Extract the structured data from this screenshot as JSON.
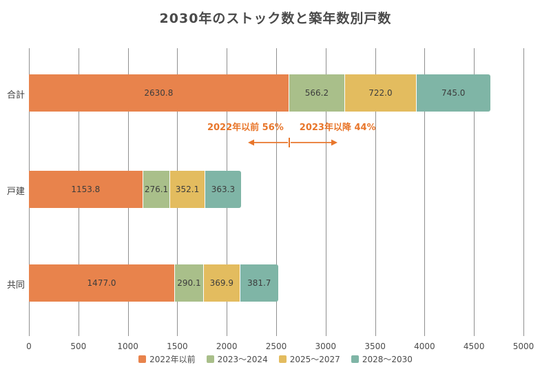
{
  "title": "2030年のストック数と築年数別戸数",
  "chart_data": {
    "type": "bar",
    "orientation": "horizontal",
    "stacked": true,
    "grid": true,
    "legend_position": "bottom",
    "categories": [
      "合計",
      "戸建",
      "共同"
    ],
    "series": [
      {
        "name": "2022年以前",
        "color": "#E8834C",
        "values": [
          2630.8,
          1153.8,
          1477.0
        ]
      },
      {
        "name": "2023～2024",
        "color": "#A9BF8A",
        "values": [
          566.2,
          276.1,
          290.1
        ]
      },
      {
        "name": "2025～2027",
        "color": "#E3BC5F",
        "values": [
          722.0,
          352.1,
          369.9
        ]
      },
      {
        "name": "2028～2030",
        "color": "#7FB5A6",
        "values": [
          745.0,
          363.3,
          381.7
        ]
      }
    ],
    "xlim": [
      0,
      5000
    ],
    "x_ticks": [
      0,
      500,
      1000,
      1500,
      2000,
      2500,
      3000,
      3500,
      4000,
      4500,
      5000
    ],
    "annotation": {
      "left_label": "2022年以前 56%",
      "right_label": "2023年以降 44%",
      "boundary_value": 2630.8,
      "color": "#E8762B"
    }
  }
}
